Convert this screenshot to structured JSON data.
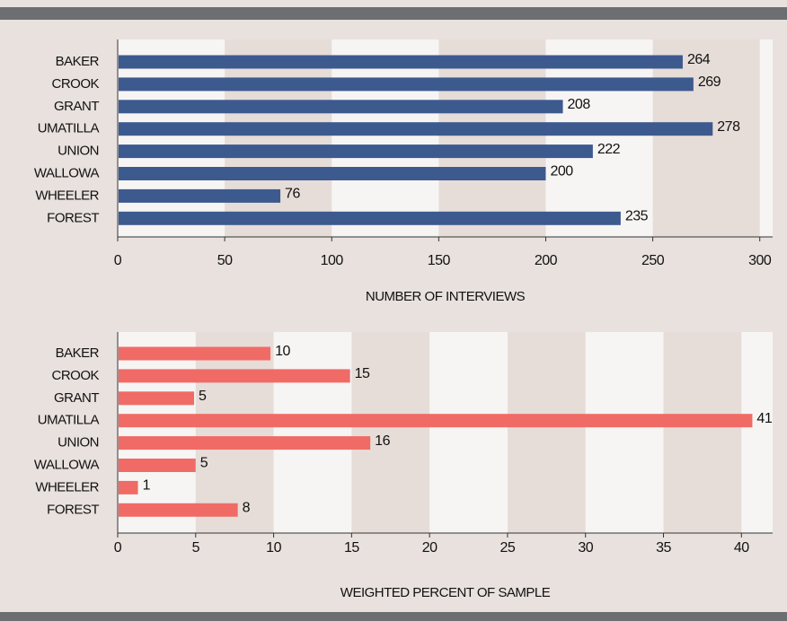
{
  "chart_data": [
    {
      "type": "hbar",
      "x_label": "NUMBER OF INTERVIEWS",
      "categories": [
        "BAKER",
        "CROOK",
        "GRANT",
        "UMATILLA",
        "UNION",
        "WALLOWA",
        "WHEELER",
        "FOREST"
      ],
      "values": [
        264,
        269,
        208,
        278,
        222,
        200,
        76,
        235
      ],
      "color": "#3d5a8f",
      "xlim": [
        0,
        306
      ],
      "xticks": [
        0,
        50,
        100,
        150,
        200,
        250,
        300
      ],
      "grid": true
    },
    {
      "type": "hbar",
      "x_label": "WEIGHTED PERCENT OF SAMPLE",
      "categories": [
        "BAKER",
        "CROOK",
        "GRANT",
        "UMATILLA",
        "UNION",
        "WALLOWA",
        "WHEELER",
        "FOREST"
      ],
      "values": [
        9.8,
        14.9,
        4.9,
        40.7,
        16.2,
        5.0,
        1.3,
        7.7
      ],
      "value_labels": [
        "10",
        "15",
        "5",
        "41",
        "16",
        "5",
        "1",
        "8"
      ],
      "color": "#f06b66",
      "xlim": [
        0,
        42
      ],
      "xticks": [
        0,
        5,
        10,
        15,
        20,
        25,
        30,
        35,
        40
      ],
      "grid": true
    }
  ]
}
